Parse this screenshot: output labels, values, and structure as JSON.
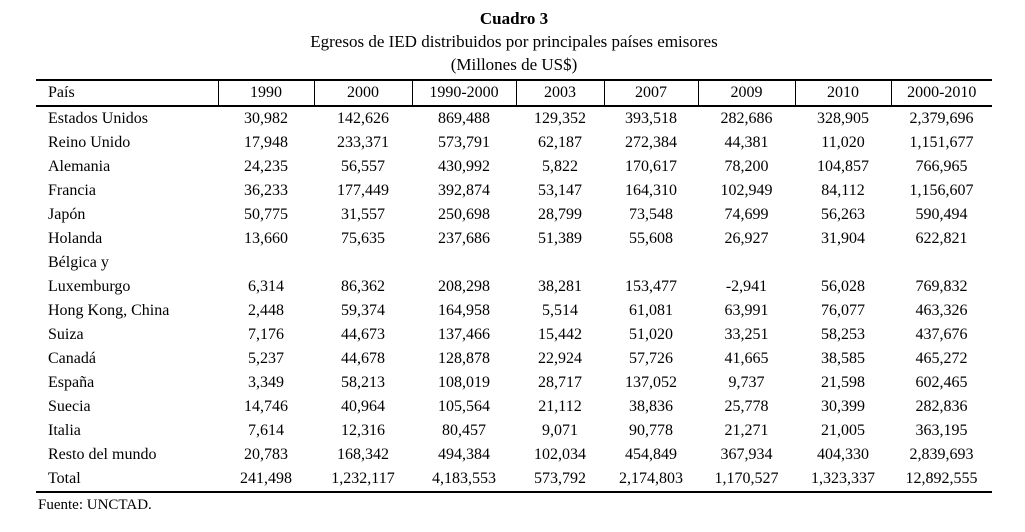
{
  "page": {
    "title": "Cuadro 3",
    "subtitle": "Egresos de IED distribuidos por principales países emisores",
    "unit": "(Millones de US$)",
    "source": "Fuente: UNCTAD."
  },
  "colors": {
    "text": "#000000",
    "background": "#ffffff",
    "rule": "#000000"
  },
  "table": {
    "headers": [
      "País",
      "1990",
      "2000",
      "1990-2000",
      "2003",
      "2007",
      "2009",
      "2010",
      "2000-2010"
    ],
    "rows": [
      {
        "name": "Estados Unidos",
        "values": [
          "30,982",
          "142,626",
          "869,488",
          "129,352",
          "393,518",
          "282,686",
          "328,905",
          "2,379,696"
        ]
      },
      {
        "name": "Reino Unido",
        "values": [
          "17,948",
          "233,371",
          "573,791",
          "62,187",
          "272,384",
          "44,381",
          "11,020",
          "1,151,677"
        ]
      },
      {
        "name": "Alemania",
        "values": [
          "24,235",
          "56,557",
          "430,992",
          "5,822",
          "170,617",
          "78,200",
          "104,857",
          "766,965"
        ]
      },
      {
        "name": "Francia",
        "values": [
          "36,233",
          "177,449",
          "392,874",
          "53,147",
          "164,310",
          "102,949",
          "84,112",
          "1,156,607"
        ]
      },
      {
        "name": "Japón",
        "values": [
          "50,775",
          "31,557",
          "250,698",
          "28,799",
          "73,548",
          "74,699",
          "56,263",
          "590,494"
        ]
      },
      {
        "name": "Holanda",
        "values": [
          "13,660",
          "75,635",
          "237,686",
          "51,389",
          "55,608",
          "26,927",
          "31,904",
          "622,821"
        ]
      },
      {
        "name": "Bélgica y\nLuxemburgo",
        "values": [
          "6,314",
          "86,362",
          "208,298",
          "38,281",
          "153,477",
          "-2,941",
          "56,028",
          "769,832"
        ]
      },
      {
        "name": "Hong Kong, China",
        "values": [
          "2,448",
          "59,374",
          "164,958",
          "5,514",
          "61,081",
          "63,991",
          "76,077",
          "463,326"
        ]
      },
      {
        "name": "Suiza",
        "values": [
          "7,176",
          "44,673",
          "137,466",
          "15,442",
          "51,020",
          "33,251",
          "58,253",
          "437,676"
        ]
      },
      {
        "name": "Canadá",
        "values": [
          "5,237",
          "44,678",
          "128,878",
          "22,924",
          "57,726",
          "41,665",
          "38,585",
          "465,272"
        ]
      },
      {
        "name": "España",
        "values": [
          "3,349",
          "58,213",
          "108,019",
          "28,717",
          "137,052",
          "9,737",
          "21,598",
          "602,465"
        ]
      },
      {
        "name": "Suecia",
        "values": [
          "14,746",
          "40,964",
          "105,564",
          "21,112",
          "38,836",
          "25,778",
          "30,399",
          "282,836"
        ]
      },
      {
        "name": "Italia",
        "values": [
          "7,614",
          "12,316",
          "80,457",
          "9,071",
          "90,778",
          "21,271",
          "21,005",
          "363,195"
        ]
      },
      {
        "name": "Resto del mundo",
        "values": [
          "20,783",
          "168,342",
          "494,384",
          "102,034",
          "454,849",
          "367,934",
          "404,330",
          "2,839,693"
        ]
      },
      {
        "name": "Total",
        "values": [
          "241,498",
          "1,232,117",
          "4,183,553",
          "573,792",
          "2,174,803",
          "1,170,527",
          "1,323,337",
          "12,892,555"
        ]
      }
    ]
  }
}
